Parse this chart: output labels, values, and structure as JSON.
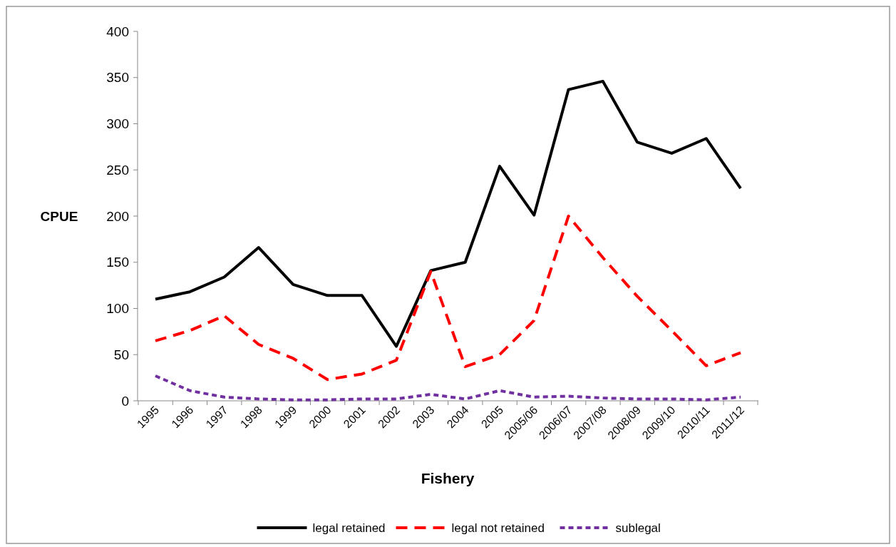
{
  "chart_data": {
    "type": "line",
    "xlabel": "Fishery",
    "ylabel": "CPUE",
    "categories": [
      "1995",
      "1996",
      "1997",
      "1998",
      "1999",
      "2000",
      "2001",
      "2002",
      "2003",
      "2004",
      "2005",
      "2005/06",
      "2006/07",
      "2007/08",
      "2008/09",
      "2009/10",
      "2010/11",
      "2011/12"
    ],
    "series": [
      {
        "name": "legal retained",
        "color": "#000000",
        "line_style": "solid",
        "values": [
          110,
          118,
          134,
          166,
          126,
          114,
          114,
          59,
          141,
          150,
          254,
          201,
          337,
          346,
          280,
          268,
          284,
          230
        ]
      },
      {
        "name": "legal not retained",
        "color": "#ff0000",
        "line_style": "dashed",
        "values": [
          65,
          76,
          92,
          61,
          46,
          23,
          29,
          44,
          140,
          37,
          50,
          87,
          200,
          155,
          113,
          76,
          38,
          52
        ]
      },
      {
        "name": "sublegal",
        "color": "#7030a0",
        "line_style": "dotted",
        "values": [
          27,
          11,
          4,
          2,
          1,
          1,
          2,
          2,
          7,
          2,
          11,
          4,
          5,
          3,
          2,
          2,
          1,
          4
        ]
      }
    ],
    "ylim": [
      0,
      400
    ],
    "yticks": [
      0,
      50,
      100,
      150,
      200,
      250,
      300,
      350,
      400
    ],
    "grid": false,
    "legend": "bottom",
    "marker": "none"
  }
}
